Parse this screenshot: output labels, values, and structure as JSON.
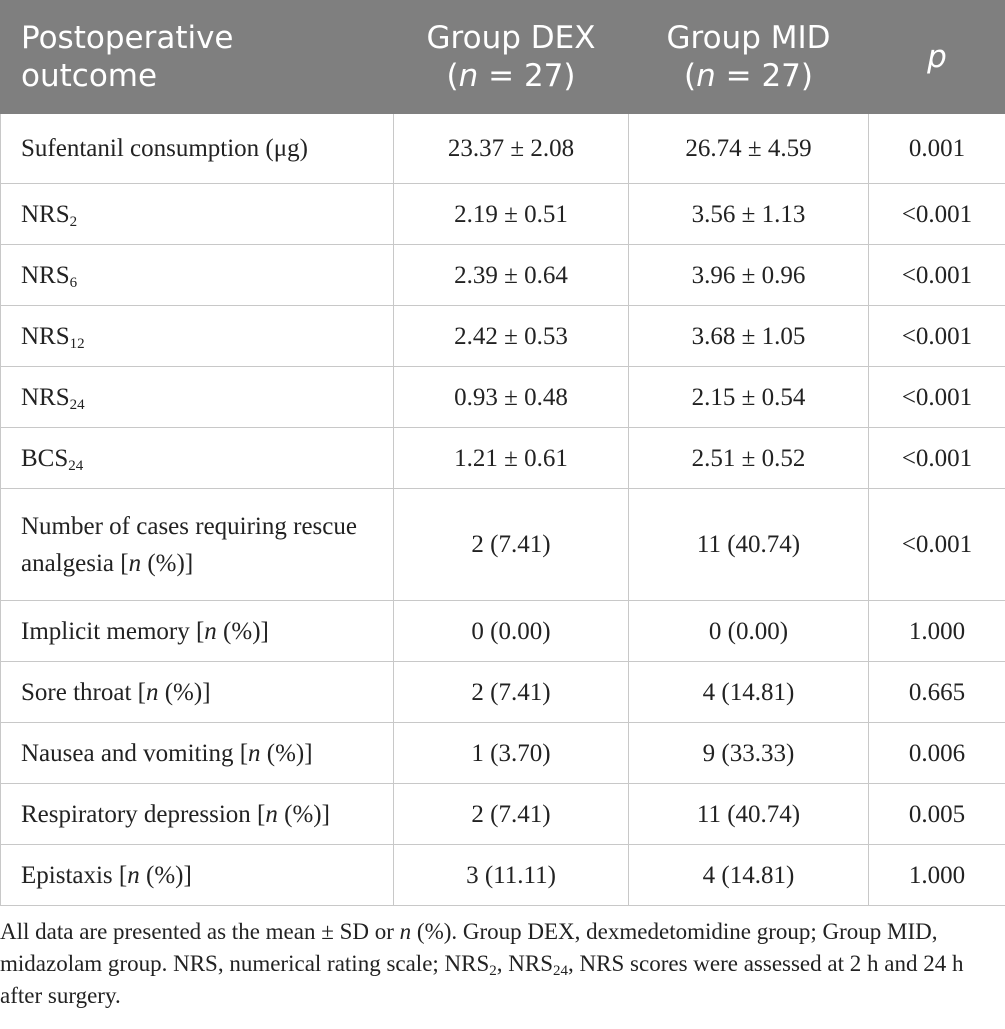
{
  "table": {
    "header": [
      {
        "lines": [
          [
            {
              "text": "Postoperative"
            }
          ],
          [
            {
              "text": "outcome"
            }
          ]
        ]
      },
      {
        "lines": [
          [
            {
              "text": "Group DEX"
            }
          ],
          [
            {
              "text": "("
            },
            {
              "text": "n",
              "style": "italic"
            },
            {
              "text": " = 27)"
            }
          ]
        ]
      },
      {
        "lines": [
          [
            {
              "text": "Group MID"
            }
          ],
          [
            {
              "text": "("
            },
            {
              "text": "n",
              "style": "italic"
            },
            {
              "text": " = 27)"
            }
          ]
        ]
      },
      {
        "lines": [
          [
            {
              "text": "p",
              "style": "italic"
            }
          ]
        ]
      }
    ],
    "rows": [
      {
        "label": [
          {
            "text": "Sufentanil consumption (μg)"
          }
        ],
        "cells": [
          "23.37 ± 2.08",
          "26.74 ± 4.59",
          "0.001"
        ]
      },
      {
        "label": [
          {
            "text": "NRS"
          },
          {
            "text": "2",
            "style": "sub"
          }
        ],
        "cells": [
          "2.19 ± 0.51",
          "3.56 ± 1.13",
          "<0.001"
        ]
      },
      {
        "label": [
          {
            "text": "NRS"
          },
          {
            "text": "6",
            "style": "sub"
          }
        ],
        "cells": [
          "2.39 ± 0.64",
          "3.96 ± 0.96",
          "<0.001"
        ]
      },
      {
        "label": [
          {
            "text": "NRS"
          },
          {
            "text": "12",
            "style": "sub"
          }
        ],
        "cells": [
          "2.42 ± 0.53",
          "3.68 ± 1.05",
          "<0.001"
        ]
      },
      {
        "label": [
          {
            "text": "NRS"
          },
          {
            "text": "24",
            "style": "sub"
          }
        ],
        "cells": [
          "0.93 ± 0.48",
          "2.15 ± 0.54",
          "<0.001"
        ]
      },
      {
        "label": [
          {
            "text": "BCS"
          },
          {
            "text": "24",
            "style": "sub"
          }
        ],
        "cells": [
          "1.21 ± 0.61",
          "2.51 ± 0.52",
          "<0.001"
        ]
      },
      {
        "label": [
          {
            "text": "Number of cases requiring rescue analgesia ["
          },
          {
            "text": "n",
            "style": "italic"
          },
          {
            "text": " (%)]"
          }
        ],
        "cells": [
          "2 (7.41)",
          "11 (40.74)",
          "<0.001"
        ]
      },
      {
        "label": [
          {
            "text": "Implicit memory ["
          },
          {
            "text": "n",
            "style": "italic"
          },
          {
            "text": " (%)]"
          }
        ],
        "cells": [
          "0 (0.00)",
          "0 (0.00)",
          "1.000"
        ]
      },
      {
        "label": [
          {
            "text": "Sore throat ["
          },
          {
            "text": "n",
            "style": "italic"
          },
          {
            "text": " (%)]"
          }
        ],
        "cells": [
          "2 (7.41)",
          "4 (14.81)",
          "0.665"
        ]
      },
      {
        "label": [
          {
            "text": "Nausea and vomiting ["
          },
          {
            "text": "n",
            "style": "italic"
          },
          {
            "text": " (%)]"
          }
        ],
        "cells": [
          "1 (3.70)",
          "9 (33.33)",
          "0.006"
        ]
      },
      {
        "label": [
          {
            "text": "Respiratory depression ["
          },
          {
            "text": "n",
            "style": "italic"
          },
          {
            "text": " (%)]"
          }
        ],
        "cells": [
          "2 (7.41)",
          "11 (40.74)",
          "0.005"
        ]
      },
      {
        "label": [
          {
            "text": "Epistaxis ["
          },
          {
            "text": "n",
            "style": "italic"
          },
          {
            "text": " (%)]"
          }
        ],
        "cells": [
          "3 (11.11)",
          "4 (14.81)",
          "1.000"
        ]
      }
    ]
  },
  "footnote": [
    {
      "text": "All data are presented as the mean ± SD or "
    },
    {
      "text": "n",
      "style": "italic"
    },
    {
      "text": " (%). Group DEX, dexmedetomidine group; Group MID, midazolam group. NRS, numerical rating scale; NRS"
    },
    {
      "text": "2",
      "style": "sub"
    },
    {
      "text": ", NRS"
    },
    {
      "text": "24",
      "style": "sub"
    },
    {
      "text": ", NRS scores were assessed at 2 h and 24 h after surgery."
    }
  ]
}
